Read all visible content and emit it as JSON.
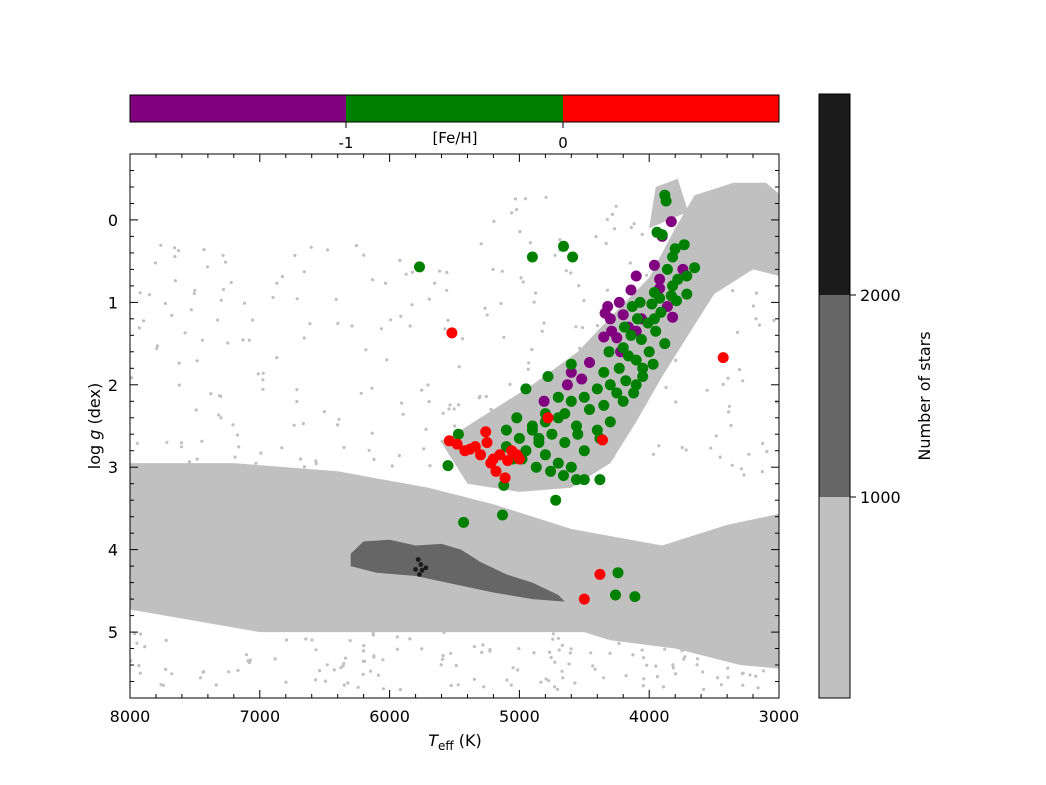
{
  "chart_data": {
    "type": "scatter",
    "title": "",
    "xlabel_main": "T",
    "xlabel_sub": "eff",
    "xlabel_unit": " (K)",
    "ylabel_pre": "log ",
    "ylabel_var": "g",
    "ylabel_unit": " (dex)",
    "xlim": [
      8000,
      3000
    ],
    "ylim": [
      5.8,
      -0.8
    ],
    "x_ticks": [
      8000,
      7000,
      6000,
      5000,
      4000,
      3000
    ],
    "y_ticks": [
      0,
      1,
      2,
      3,
      4,
      5
    ],
    "background_density": {
      "description_label": "Number of stars",
      "levels": [
        {
          "range": [
            0,
            1000
          ],
          "color": "#c0c0c0"
        },
        {
          "range": [
            1000,
            2000
          ],
          "color": "#666666"
        },
        {
          "range": [
            2000,
            3000
          ],
          "color": "#1b1b1b"
        }
      ],
      "colorbar_ticks": [
        1000,
        2000
      ]
    },
    "feh_colorbar": {
      "label": "[Fe/H]",
      "ticks": [
        "-1",
        "0"
      ],
      "segments": [
        {
          "range": [
            -2,
            -1
          ],
          "color": "#800080"
        },
        {
          "range": [
            -1,
            0
          ],
          "color": "#008000"
        },
        {
          "range": [
            0,
            1
          ],
          "color": "#ff0000"
        }
      ]
    },
    "series": [
      {
        "color": "#800080",
        "points": [
          [
            3830,
            0.02
          ],
          [
            3900,
            0.2
          ],
          [
            3960,
            0.55
          ],
          [
            4100,
            0.68
          ],
          [
            3920,
            0.72
          ],
          [
            3740,
            0.6
          ],
          [
            3920,
            0.83
          ],
          [
            4140,
            0.85
          ],
          [
            4230,
            1.0
          ],
          [
            4320,
            1.05
          ],
          [
            4340,
            1.13
          ],
          [
            3860,
            1.05
          ],
          [
            3820,
            1.18
          ],
          [
            4200,
            1.15
          ],
          [
            4300,
            1.2
          ],
          [
            4060,
            1.2
          ],
          [
            4160,
            1.3
          ],
          [
            4100,
            1.35
          ],
          [
            4290,
            1.35
          ],
          [
            4250,
            1.43
          ],
          [
            4350,
            1.42
          ],
          [
            4220,
            1.6
          ],
          [
            4460,
            1.73
          ],
          [
            4600,
            1.85
          ],
          [
            4520,
            1.93
          ],
          [
            4630,
            2.0
          ],
          [
            4810,
            2.2
          ]
        ]
      },
      {
        "color": "#008000",
        "points": [
          [
            3880,
            -0.3
          ],
          [
            3870,
            -0.23
          ],
          [
            3900,
            0.18
          ],
          [
            3940,
            0.15
          ],
          [
            3800,
            0.35
          ],
          [
            3730,
            0.3
          ],
          [
            3820,
            0.45
          ],
          [
            3650,
            0.58
          ],
          [
            3710,
            0.68
          ],
          [
            3860,
            0.6
          ],
          [
            3780,
            0.72
          ],
          [
            3820,
            0.8
          ],
          [
            3710,
            0.9
          ],
          [
            3830,
            0.92
          ],
          [
            3920,
            0.95
          ],
          [
            3960,
            0.88
          ],
          [
            3790,
            0.98
          ],
          [
            4070,
            1.0
          ],
          [
            3980,
            1.02
          ],
          [
            4130,
            1.05
          ],
          [
            3910,
            1.12
          ],
          [
            3960,
            1.2
          ],
          [
            4090,
            1.2
          ],
          [
            4010,
            1.25
          ],
          [
            4190,
            1.3
          ],
          [
            3950,
            1.35
          ],
          [
            4140,
            1.4
          ],
          [
            4060,
            1.45
          ],
          [
            3880,
            1.5
          ],
          [
            4200,
            1.55
          ],
          [
            4310,
            1.6
          ],
          [
            4000,
            1.6
          ],
          [
            4160,
            1.65
          ],
          [
            4100,
            1.7
          ],
          [
            3970,
            1.75
          ],
          [
            4230,
            1.8
          ],
          [
            4350,
            1.85
          ],
          [
            4050,
            1.9
          ],
          [
            4180,
            1.95
          ],
          [
            4300,
            2.0
          ],
          [
            4400,
            2.05
          ],
          [
            4120,
            2.1
          ],
          [
            4250,
            2.1
          ],
          [
            4500,
            2.15
          ],
          [
            4600,
            2.2
          ],
          [
            4350,
            2.25
          ],
          [
            4460,
            2.3
          ],
          [
            4650,
            2.35
          ],
          [
            4700,
            2.4
          ],
          [
            4800,
            2.45
          ],
          [
            4560,
            2.5
          ],
          [
            4400,
            2.55
          ],
          [
            4900,
            2.55
          ],
          [
            4750,
            2.6
          ],
          [
            4850,
            2.65
          ],
          [
            5000,
            2.65
          ],
          [
            4650,
            2.7
          ],
          [
            5100,
            2.75
          ],
          [
            4950,
            2.8
          ],
          [
            4800,
            2.85
          ],
          [
            5050,
            2.9
          ],
          [
            4700,
            2.95
          ],
          [
            4600,
            3.0
          ],
          [
            4500,
            2.8
          ],
          [
            4380,
            2.65
          ],
          [
            4300,
            2.45
          ],
          [
            4200,
            2.2
          ],
          [
            4100,
            2.0
          ],
          [
            4050,
            1.8
          ],
          [
            4980,
            2.9
          ],
          [
            4870,
            3.0
          ],
          [
            4760,
            3.05
          ],
          [
            4660,
            3.1
          ],
          [
            4560,
            3.15
          ],
          [
            4900,
            2.5
          ],
          [
            5100,
            2.55
          ],
          [
            5020,
            2.4
          ],
          [
            4850,
            2.7
          ],
          [
            4950,
            2.05
          ],
          [
            4780,
            1.9
          ],
          [
            4600,
            1.75
          ],
          [
            4800,
            2.35
          ],
          [
            4700,
            2.15
          ],
          [
            4550,
            2.6
          ],
          [
            4380,
            3.15
          ],
          [
            4500,
            3.15
          ],
          [
            4720,
            3.4
          ],
          [
            5120,
            3.22
          ],
          [
            5130,
            3.58
          ],
          [
            5430,
            3.67
          ],
          [
            5470,
            2.6
          ],
          [
            5550,
            2.98
          ],
          [
            5770,
            0.57
          ],
          [
            4900,
            0.45
          ],
          [
            4660,
            0.32
          ],
          [
            4590,
            0.45
          ],
          [
            4240,
            4.28
          ],
          [
            4260,
            4.55
          ],
          [
            4110,
            4.57
          ]
        ]
      },
      {
        "color": "#ff0000",
        "points": [
          [
            5520,
            1.37
          ],
          [
            3430,
            1.67
          ],
          [
            4360,
            2.67
          ],
          [
            5540,
            2.68
          ],
          [
            5480,
            2.72
          ],
          [
            5420,
            2.8
          ],
          [
            5380,
            2.78
          ],
          [
            5340,
            2.75
          ],
          [
            5300,
            2.85
          ],
          [
            5250,
            2.7
          ],
          [
            5200,
            2.9
          ],
          [
            5150,
            2.85
          ],
          [
            5090,
            2.92
          ],
          [
            5060,
            2.8
          ],
          [
            5020,
            2.85
          ],
          [
            5260,
            2.57
          ],
          [
            5220,
            2.95
          ],
          [
            5180,
            3.05
          ],
          [
            5110,
            3.13
          ],
          [
            5000,
            2.9
          ],
          [
            4780,
            2.4
          ],
          [
            4380,
            4.3
          ],
          [
            4500,
            4.6
          ]
        ]
      }
    ]
  }
}
